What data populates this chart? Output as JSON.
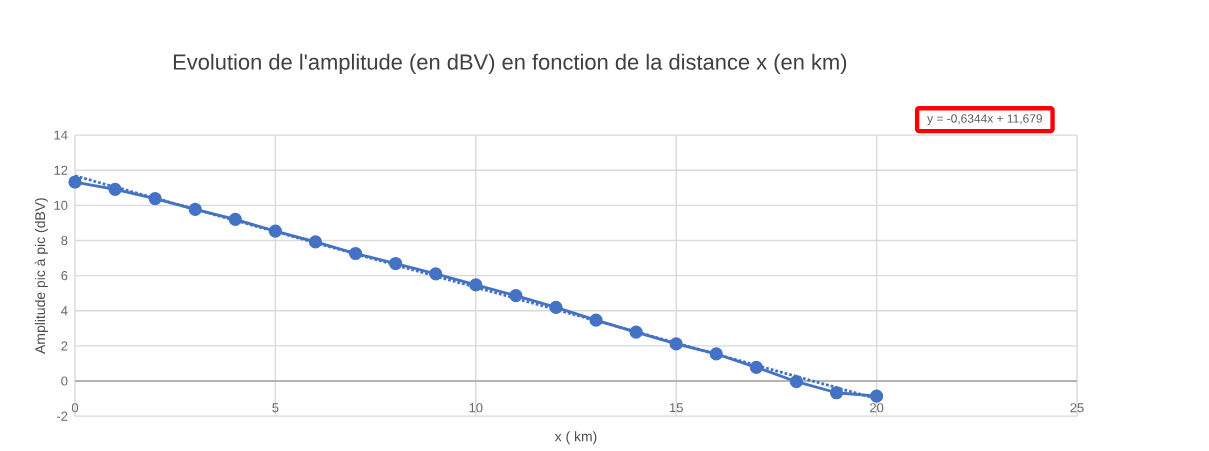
{
  "chart_data": {
    "type": "line",
    "title": "Evolution de l'amplitude (en dBV) en fonction de la distance x (en km)",
    "xlabel": "x ( km)",
    "ylabel": "Amplitude pic à pic (dBV)",
    "annotations": [
      "y = -0,6344x + 11,679"
    ],
    "x": [
      0,
      1,
      2,
      3,
      4,
      5,
      6,
      7,
      8,
      9,
      10,
      11,
      12,
      13,
      14,
      15,
      16,
      17,
      18,
      19,
      20
    ],
    "series": [
      {
        "color": "#4472c4",
        "marker": "circle",
        "line_style": "solid",
        "values": [
          11.33,
          10.91,
          10.38,
          9.77,
          9.2,
          8.53,
          7.92,
          7.26,
          6.69,
          6.1,
          5.47,
          4.86,
          4.19,
          3.47,
          2.78,
          2.11,
          1.54,
          0.78,
          -0.04,
          -0.67,
          -0.86
        ]
      },
      {
        "type": "line",
        "color": "#4472c4",
        "marker": "none",
        "line_style": "dotted",
        "x": [
          0,
          20
        ],
        "values": [
          11.68,
          -1.01
        ]
      }
    ],
    "xlim": [
      0,
      25
    ],
    "ylim": [
      -2,
      14
    ],
    "xticks": [
      0,
      5,
      10,
      15,
      20,
      25
    ],
    "yticks": [
      -2,
      0,
      2,
      4,
      6,
      8,
      10,
      12,
      14
    ],
    "grid": true
  }
}
